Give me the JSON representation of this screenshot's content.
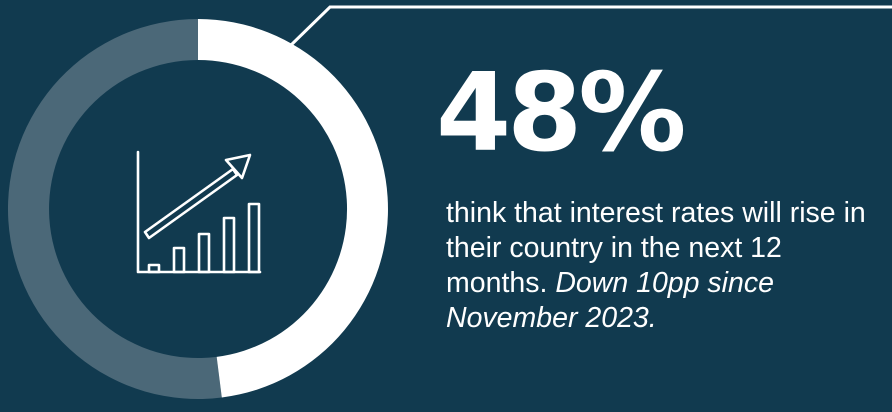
{
  "chart_data": {
    "type": "pie",
    "variant": "donut",
    "title": "",
    "slices": [
      {
        "value": 48
      },
      {
        "value": 52
      }
    ],
    "colors": [
      "#ffffff",
      "#4b6878"
    ]
  },
  "stat": {
    "value_label": "48%"
  },
  "description": {
    "main": "think that interest rates will rise in their country in the next 12 months.",
    "note": "Down 10pp since November 2023."
  },
  "icons": {
    "center": "rising-bar-chart-arrow-icon"
  },
  "colors": {
    "background": "#113a4f",
    "accent": "#ffffff",
    "track": "#4b6878"
  }
}
